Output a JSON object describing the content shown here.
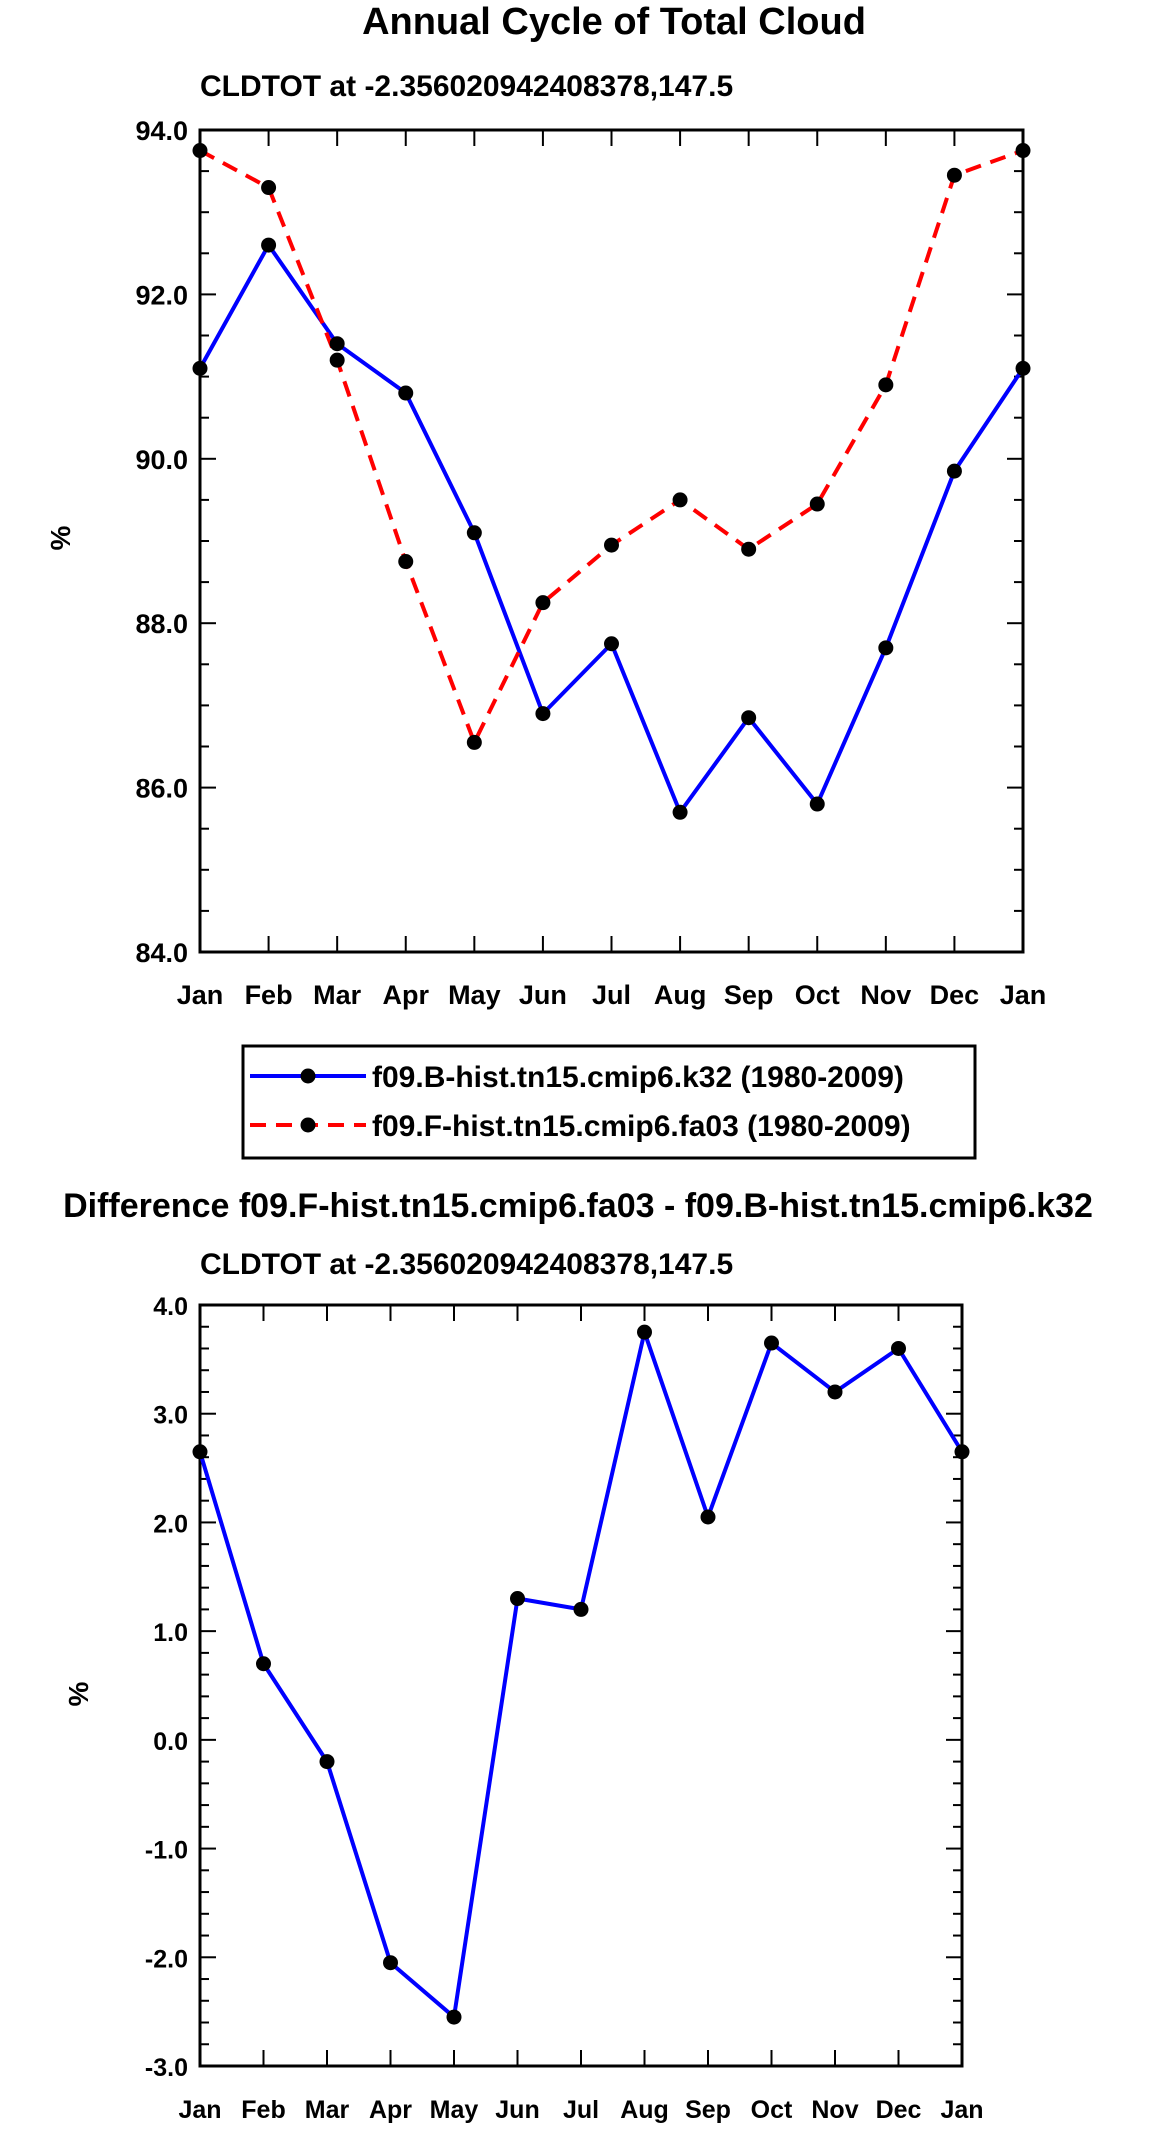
{
  "chart_data": [
    {
      "type": "line",
      "title": "Annual Cycle of Total Cloud",
      "subtitle": "CLDTOT at -2.356020942408378,147.5",
      "xlabel": "",
      "ylabel": "%",
      "categories": [
        "Jan",
        "Feb",
        "Mar",
        "Apr",
        "May",
        "Jun",
        "Jul",
        "Aug",
        "Sep",
        "Oct",
        "Nov",
        "Dec",
        "Jan"
      ],
      "ylim": [
        84.0,
        94.0
      ],
      "yticks": [
        "84.0",
        "86.0",
        "88.0",
        "90.0",
        "92.0",
        "94.0"
      ],
      "series": [
        {
          "name": "f09.B-hist.tn15.cmip6.k32 (1980-2009)",
          "color": "#0000ff",
          "dash": "solid",
          "values": [
            91.1,
            92.6,
            91.4,
            90.8,
            89.1,
            86.9,
            87.75,
            85.7,
            86.85,
            85.8,
            87.7,
            89.85,
            91.1
          ]
        },
        {
          "name": "f09.F-hist.tn15.cmip6.fa03 (1980-2009)",
          "color": "#ff0000",
          "dash": "dashed",
          "values": [
            93.75,
            93.3,
            91.2,
            88.75,
            86.55,
            88.25,
            88.95,
            89.5,
            88.9,
            89.45,
            90.9,
            93.45,
            93.75
          ]
        }
      ],
      "legend_position": "below"
    },
    {
      "type": "line",
      "title": "Difference f09.F-hist.tn15.cmip6.fa03 - f09.B-hist.tn15.cmip6.k32",
      "subtitle": "CLDTOT at -2.356020942408378,147.5",
      "xlabel": "",
      "ylabel": "%",
      "categories": [
        "Jan",
        "Feb",
        "Mar",
        "Apr",
        "May",
        "Jun",
        "Jul",
        "Aug",
        "Sep",
        "Oct",
        "Nov",
        "Dec",
        "Jan"
      ],
      "ylim": [
        -3.0,
        4.0
      ],
      "yticks": [
        "-3.0",
        "-2.0",
        "-1.0",
        "0.0",
        "1.0",
        "2.0",
        "3.0",
        "4.0"
      ],
      "series": [
        {
          "name": "difference",
          "color": "#0000ff",
          "dash": "solid",
          "values": [
            2.65,
            0.7,
            -0.2,
            -2.05,
            -2.55,
            1.3,
            1.2,
            3.75,
            2.05,
            3.65,
            3.2,
            3.6,
            2.65
          ]
        }
      ]
    }
  ]
}
